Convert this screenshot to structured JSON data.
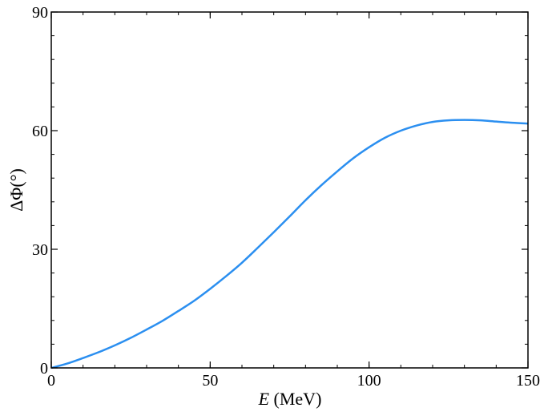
{
  "chart_data": {
    "type": "line",
    "xlabel_var": "E",
    "xlabel_unit": " (MeV)",
    "ylabel": "ΔΦ(°)",
    "xlim": [
      0,
      150
    ],
    "ylim": [
      0,
      90
    ],
    "x_ticks": [
      0,
      50,
      100,
      150
    ],
    "y_ticks": [
      0,
      30,
      60,
      90
    ],
    "x_tick_labels": [
      "0",
      "50",
      "100",
      "150"
    ],
    "y_tick_labels": [
      "0",
      "30",
      "60",
      "90"
    ],
    "x_minor_step": 10,
    "y_minor_step": 6,
    "grid": false,
    "series": [
      {
        "color": "#2b8ff0",
        "x": [
          0,
          5,
          10,
          15,
          20,
          25,
          30,
          35,
          40,
          45,
          50,
          55,
          60,
          65,
          70,
          75,
          80,
          85,
          90,
          95,
          100,
          105,
          110,
          115,
          120,
          125,
          130,
          135,
          140,
          145,
          150
        ],
        "y": [
          0,
          1.1,
          2.5,
          4.0,
          5.7,
          7.6,
          9.7,
          11.9,
          14.4,
          17.0,
          20.0,
          23.2,
          26.6,
          30.4,
          34.3,
          38.3,
          42.4,
          46.2,
          49.7,
          53.0,
          55.8,
          58.2,
          60.0,
          61.3,
          62.2,
          62.6,
          62.7,
          62.6,
          62.3,
          62.0,
          61.8
        ]
      }
    ]
  }
}
